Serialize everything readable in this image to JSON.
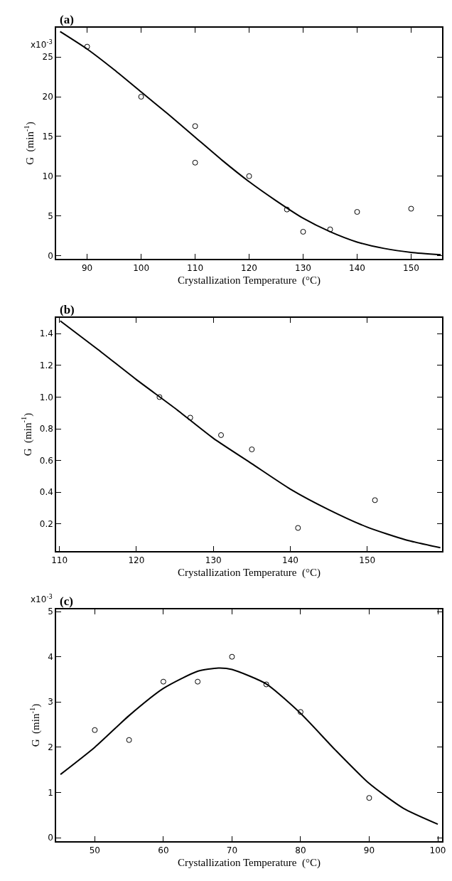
{
  "chart_data": [
    {
      "type": "scatter",
      "title": "(a)",
      "xlabel": "Crystallization Temperature  (°C)",
      "ylabel": "G  (min$^{-1}$)",
      "xlim": [
        84.3,
        155.7
      ],
      "ylim": [
        -0.43,
        28.7
      ],
      "xticks": [
        90,
        100,
        110,
        120,
        130,
        140,
        150
      ],
      "yticks": [
        0,
        5,
        10,
        15,
        20,
        25
      ],
      "annotations": [
        "x10$^{-3}$"
      ],
      "grid": false,
      "legend": false,
      "series": [
        {
          "marker": "circle",
          "color": "#000000",
          "x": [
            90,
            100,
            110,
            110,
            120,
            127,
            130,
            135,
            140,
            150
          ],
          "values": [
            26.3,
            20.0,
            16.3,
            11.7,
            10.0,
            5.8,
            3.0,
            3.3,
            5.5,
            5.9
          ]
        },
        {
          "type": "line",
          "line_style": "solid",
          "color": "#000000",
          "x": [
            85,
            90,
            95,
            100,
            105,
            110,
            115,
            120,
            125,
            130,
            135,
            140,
            145,
            150,
            155.5
          ],
          "values": [
            28.2,
            26.0,
            23.4,
            20.6,
            17.8,
            14.9,
            12.0,
            9.3,
            6.9,
            4.7,
            3.0,
            1.7,
            0.9,
            0.4,
            0.1
          ]
        }
      ]
    },
    {
      "type": "scatter",
      "title": "(b)",
      "xlabel": "Crystallization Temperature  (°C)",
      "ylabel": "G  (min$^{-1}$)",
      "xlim": [
        109.6,
        159.7
      ],
      "ylim": [
        0.028,
        1.5
      ],
      "xticks": [
        110,
        120,
        130,
        140,
        150
      ],
      "yticks": [
        {
          "value": 0.2,
          "label": "0.2"
        },
        {
          "value": 0.4,
          "label": "0.4"
        },
        {
          "value": 0.6,
          "label": "0.6"
        },
        {
          "value": 0.8,
          "label": "0.8"
        },
        {
          "value": 1.0,
          "label": "1.0"
        },
        {
          "value": 1.2,
          "label": "1.2"
        },
        {
          "value": 1.4,
          "label": "1.4"
        }
      ],
      "grid": false,
      "legend": false,
      "series": [
        {
          "marker": "circle",
          "color": "#000000",
          "x": [
            123,
            127,
            131,
            135,
            141,
            151
          ],
          "values": [
            1.0,
            0.87,
            0.76,
            0.67,
            0.175,
            0.35
          ]
        },
        {
          "type": "line",
          "line_style": "solid",
          "color": "#000000",
          "x": [
            110.1,
            115,
            120,
            125,
            130,
            135,
            140,
            145,
            150,
            155,
            159.5
          ],
          "values": [
            1.48,
            1.3,
            1.11,
            0.93,
            0.74,
            0.58,
            0.42,
            0.29,
            0.18,
            0.1,
            0.05
          ]
        }
      ]
    },
    {
      "type": "scatter",
      "title": "(c)",
      "xlabel": "Crystallization Temperature  (°C)",
      "ylabel": "G  (min$^{-1}$)",
      "xlim": [
        44.4,
        100.6
      ],
      "ylim": [
        -0.08,
        5.05
      ],
      "xticks": [
        50,
        60,
        70,
        80,
        90,
        100
      ],
      "yticks": [
        0,
        1,
        2,
        3,
        4,
        5
      ],
      "annotations": [
        "x10$^{-3}$"
      ],
      "grid": false,
      "legend": false,
      "series": [
        {
          "marker": "circle",
          "color": "#000000",
          "x": [
            50,
            55,
            60,
            65,
            70,
            75,
            80,
            90
          ],
          "values": [
            2.38,
            2.16,
            3.45,
            3.45,
            4.0,
            3.39,
            2.78,
            0.88
          ]
        },
        {
          "type": "line",
          "line_style": "solid",
          "color": "#000000",
          "x": [
            45,
            50,
            55,
            60,
            65,
            68,
            70,
            75,
            80,
            85,
            90,
            95,
            100
          ],
          "values": [
            1.4,
            2.0,
            2.7,
            3.3,
            3.68,
            3.75,
            3.72,
            3.4,
            2.75,
            1.95,
            1.2,
            0.65,
            0.3
          ]
        }
      ]
    }
  ]
}
